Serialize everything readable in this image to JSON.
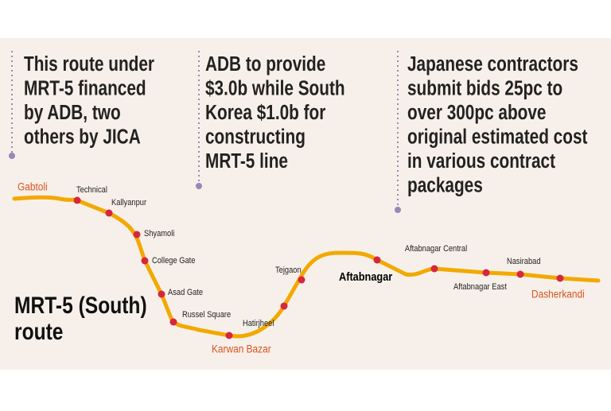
{
  "notes": [
    {
      "lines": [
        "This route under",
        "MRT-5 financed",
        "by ADB, two",
        "others by JICA"
      ]
    },
    {
      "lines": [
        "ADB to provide",
        "$3.0b while South",
        "Korea $1.0b for",
        "constructing",
        "MRT-5 line"
      ]
    },
    {
      "lines": [
        "Japanese contractors",
        "submit bids 25pc to",
        "over 300pc above",
        "original estimated cost",
        "in various contract",
        "packages"
      ]
    }
  ],
  "title_lines": [
    "MRT-5 (South)",
    "route"
  ],
  "stations": [
    {
      "name": "Gabtoli"
    },
    {
      "name": "Technical"
    },
    {
      "name": "Kallyanpur"
    },
    {
      "name": "Shyamoli"
    },
    {
      "name": "College Gate"
    },
    {
      "name": "Asad Gate"
    },
    {
      "name": "Russel Square"
    },
    {
      "name": "Karwan Bazar"
    },
    {
      "name": "Hatirjheel"
    },
    {
      "name": "Tejgaon"
    },
    {
      "name": "Aftabnagar"
    },
    {
      "name": "Aftabnagar Central"
    },
    {
      "name": "Aftabnagar East"
    },
    {
      "name": "Nasirabad"
    },
    {
      "name": "Dasherkandi"
    }
  ]
}
